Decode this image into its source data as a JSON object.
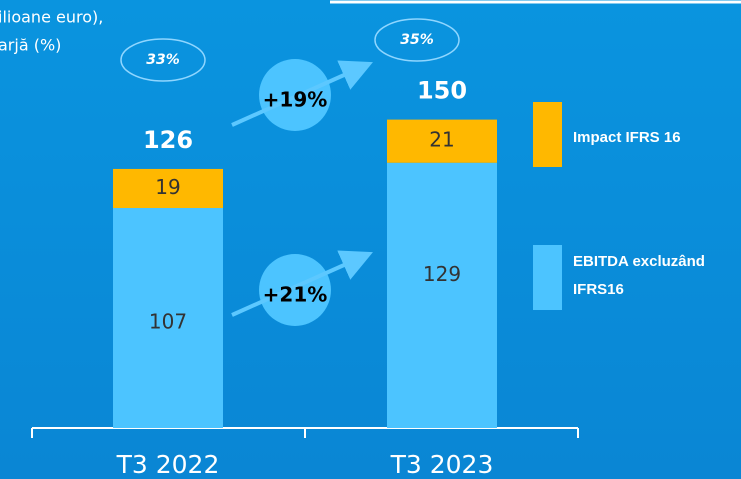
{
  "chart_data": {
    "type": "bar",
    "stacked": true,
    "subtitle_lines": [
      "ilioane euro),",
      "arjă (%)"
    ],
    "categories": [
      "T3 2022",
      "T3 2023"
    ],
    "series": [
      {
        "name": "EBITDA excluzând IFRS16",
        "color": "#4cc4ff",
        "values": [
          107,
          129
        ]
      },
      {
        "name": "Impact IFRS 16",
        "color": "#ffb800",
        "values": [
          19,
          21
        ]
      }
    ],
    "totals": [
      126,
      150
    ],
    "margins": [
      "33%",
      "35%"
    ],
    "growth": [
      "+19%",
      "+21%"
    ]
  }
}
